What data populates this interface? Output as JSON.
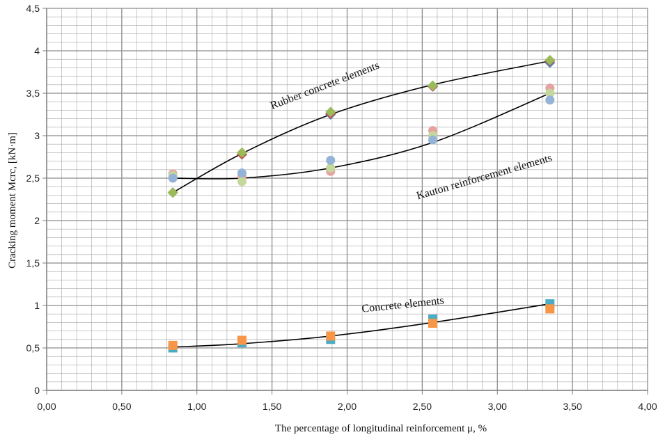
{
  "chart_data": {
    "type": "scatter",
    "xlabel": "The percentage of longitudinal reinforcement  μ, %",
    "ylabel": "Cracking moment Mcrc, [kN·m]",
    "xlim": [
      0,
      4
    ],
    "ylim": [
      0,
      4.5
    ],
    "x_ticks": [
      "0,00",
      "0,50",
      "1,00",
      "1,50",
      "2,00",
      "2,50",
      "3,00",
      "3,50",
      "4,00"
    ],
    "y_ticks": [
      "0",
      "0,5",
      "1",
      "1,5",
      "2",
      "2,5",
      "3",
      "3,5",
      "4",
      "4,5"
    ],
    "x_tick_values": [
      0,
      0.5,
      1,
      1.5,
      2,
      2.5,
      3,
      3.5,
      4
    ],
    "y_tick_values": [
      0,
      0.5,
      1,
      1.5,
      2,
      2.5,
      3,
      3.5,
      4,
      4.5
    ],
    "grid": true,
    "series": [
      {
        "marker": "diamond",
        "color": "#4f81bd",
        "x": [
          0.84,
          1.3,
          1.89,
          2.57,
          3.35
        ],
        "y": [
          2.33,
          2.78,
          3.25,
          3.58,
          3.86
        ]
      },
      {
        "marker": "diamond",
        "color": "#c0504d",
        "x": [
          0.84,
          1.3,
          1.89,
          2.57,
          3.35
        ],
        "y": [
          2.33,
          2.78,
          3.26,
          3.58,
          3.88
        ]
      },
      {
        "marker": "diamond",
        "color": "#9bbb59",
        "x": [
          0.84,
          1.3,
          1.89,
          2.57,
          3.35
        ],
        "y": [
          2.33,
          2.8,
          3.28,
          3.59,
          3.89
        ]
      },
      {
        "marker": "circle",
        "color": "#e6a1a1",
        "x": [
          0.84,
          1.3,
          1.89,
          2.57,
          3.35
        ],
        "y": [
          2.55,
          2.52,
          2.58,
          3.06,
          3.56
        ]
      },
      {
        "marker": "circle",
        "color": "#c4d89b",
        "x": [
          0.84,
          1.3,
          1.89,
          2.57,
          3.35
        ],
        "y": [
          2.53,
          2.46,
          2.62,
          3.0,
          3.5
        ]
      },
      {
        "marker": "circle",
        "color": "#95b3d7",
        "x": [
          0.84,
          1.3,
          1.89,
          2.57,
          3.35
        ],
        "y": [
          2.5,
          2.56,
          2.71,
          2.95,
          3.42
        ]
      },
      {
        "marker": "square",
        "color": "#4bacc6",
        "x": [
          0.84,
          1.3,
          1.89,
          2.57,
          3.35
        ],
        "y": [
          0.5,
          0.56,
          0.6,
          0.84,
          1.02
        ]
      },
      {
        "marker": "square",
        "color": "#f79646",
        "x": [
          0.84,
          1.3,
          1.89,
          2.57,
          3.35
        ],
        "y": [
          0.53,
          0.59,
          0.64,
          0.79,
          0.96
        ]
      }
    ],
    "trendlines": [
      {
        "x": [
          0.84,
          1.3,
          1.89,
          2.57,
          3.35
        ],
        "y": [
          2.33,
          2.79,
          3.25,
          3.6,
          3.88
        ]
      },
      {
        "x": [
          0.84,
          1.3,
          1.89,
          2.57,
          3.35
        ],
        "y": [
          2.5,
          2.5,
          2.62,
          2.92,
          3.5
        ]
      },
      {
        "x": [
          0.84,
          1.3,
          1.89,
          2.57,
          3.35
        ],
        "y": [
          0.51,
          0.55,
          0.64,
          0.8,
          1.02
        ]
      }
    ],
    "annotations": [
      {
        "text": "Rubber concrete elements",
        "x": 1.5,
        "y": 3.31,
        "angle": -21
      },
      {
        "text": "Kauton reinforcement elements",
        "x": 2.47,
        "y": 2.25,
        "angle": -16
      },
      {
        "text": "Concrete elements",
        "x": 2.1,
        "y": 0.92,
        "angle": -6
      }
    ],
    "colors": {
      "grid": "#a6a6a6",
      "axis": "#7f7f7f",
      "trend": "#000000"
    }
  }
}
